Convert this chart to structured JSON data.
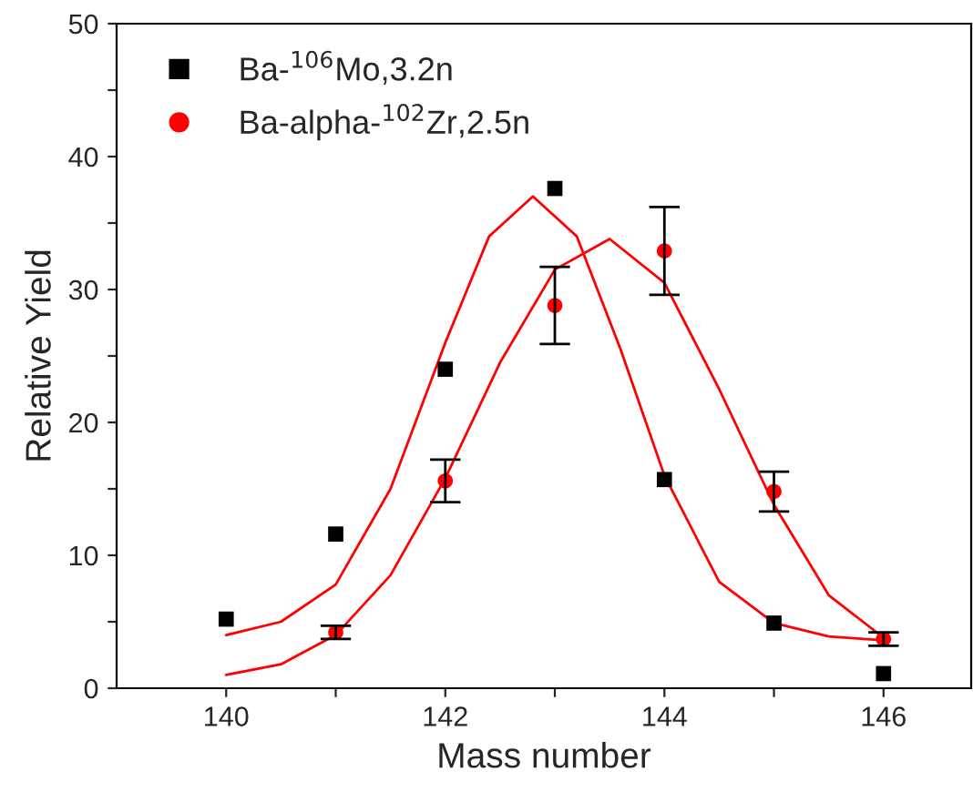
{
  "chart_data": {
    "type": "scatter",
    "xlabel": "Mass number",
    "ylabel": "Relative Yield",
    "xlim": [
      139,
      146.8
    ],
    "ylim": [
      0,
      50
    ],
    "xticks": [
      140,
      {
        "value": 141,
        "label": null
      },
      142,
      {
        "value": 143,
        "label": null
      },
      144,
      {
        "value": 145,
        "label": null
      },
      146
    ],
    "yticks": [
      0,
      {
        "value": 5,
        "label": null
      },
      10,
      {
        "value": 15,
        "label": null
      },
      20,
      {
        "value": 25,
        "label": null
      },
      30,
      {
        "value": 35,
        "label": null
      },
      40,
      {
        "value": 45,
        "label": null
      },
      50
    ],
    "grid": false,
    "legend": "top left",
    "series": [
      {
        "name": "Ba-$^{106}$Mo,3.2n",
        "marker": "square",
        "color": "#000000",
        "x": [
          140,
          141,
          142,
          143,
          144,
          145,
          146
        ],
        "values": [
          5.2,
          11.6,
          24,
          37.6,
          15.7,
          4.9,
          1.1
        ]
      },
      {
        "name": "Ba-alpha-$^{102}$Zr,2.5n",
        "marker": "circle",
        "color": "#ff0000",
        "x": [
          141,
          142,
          143,
          144,
          145,
          146
        ],
        "values": [
          4.2,
          15.6,
          28.8,
          32.9,
          14.8,
          3.7
        ],
        "errors": [
          0.5,
          1.6,
          2.9,
          3.3,
          1.5,
          0.5
        ]
      },
      {
        "type": "line",
        "color": "#ff0000",
        "x": [
          140,
          140.5,
          141,
          141.5,
          142,
          142.4,
          142.8,
          143.2,
          143.6,
          144,
          144.5,
          145,
          145.5,
          146
        ],
        "values": [
          4.0,
          5.0,
          7.8,
          15,
          26,
          34,
          37,
          34,
          25.5,
          16,
          8,
          4.9,
          3.9,
          3.6
        ]
      },
      {
        "type": "line",
        "color": "#ff0000",
        "x": [
          140,
          140.5,
          141,
          141.5,
          142,
          142.5,
          143,
          143.5,
          144,
          144.5,
          145,
          145.5,
          146
        ],
        "values": [
          1.0,
          1.8,
          4.0,
          8.5,
          15.8,
          24.5,
          31.5,
          33.8,
          30.5,
          22.5,
          13.8,
          7.0,
          3.8
        ]
      }
    ]
  }
}
